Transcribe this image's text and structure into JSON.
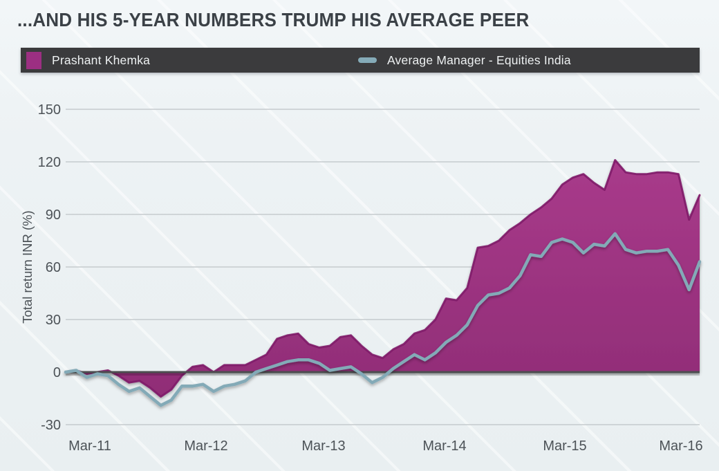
{
  "title": "...AND HIS 5-YEAR NUMBERS TRUMP HIS AVERAGE PEER",
  "legend": {
    "series1": "Prashant Khemka",
    "series2": "Average Manager - Equities India"
  },
  "colors": {
    "khemka_fill_top": "#a93b8b",
    "khemka_fill_bottom": "#8d2b74",
    "khemka_line": "#7e1a68",
    "average_line": "#83aab7",
    "legend_bar": "#3b3b3d",
    "background": "#edf2f4",
    "grid": "#c5cbce",
    "zero_line": "#4c4e50",
    "axis_text": "#4c5257",
    "title_text": "#3b4147"
  },
  "chart_data": {
    "type": "area",
    "title": "...AND HIS 5-YEAR NUMBERS TRUMP HIS AVERAGE PEER",
    "xlabel": "",
    "ylabel": "Total return INR (%)",
    "x_tick_labels": [
      "Mar-11",
      "Mar-12",
      "Mar-13",
      "Mar-14",
      "Mar-15",
      "Mar-16"
    ],
    "y_ticks": [
      150,
      120,
      90,
      60,
      30,
      0,
      -30
    ],
    "ylim": [
      -30,
      150
    ],
    "x_frequency": "monthly",
    "x_start": "Mar-11",
    "x_end": "Mar-16",
    "grid": "horizontal-only",
    "legend_position": "top-bar",
    "series": [
      {
        "name": "Prashant Khemka",
        "style": "area",
        "values": [
          0,
          1,
          -1,
          0,
          1,
          -2,
          -6,
          -5,
          -9,
          -14,
          -10,
          -2,
          3,
          4,
          0,
          4,
          4,
          4,
          7,
          10,
          19,
          21,
          22,
          16,
          14,
          15,
          20,
          21,
          15,
          10,
          8,
          13,
          16,
          22,
          24,
          30,
          42,
          41,
          48,
          71,
          72,
          75,
          81,
          85,
          90,
          94,
          99,
          107,
          111,
          113,
          108,
          104,
          121,
          114,
          113,
          113,
          114,
          114,
          113,
          87,
          101
        ]
      },
      {
        "name": "Average Manager - Equities India",
        "style": "line",
        "values": [
          0,
          1,
          -3,
          -1,
          -2,
          -7,
          -11,
          -9,
          -14,
          -19,
          -16,
          -8,
          -8,
          -7,
          -11,
          -8,
          -7,
          -5,
          0,
          2,
          4,
          6,
          7,
          7,
          5,
          1,
          2,
          3,
          -1,
          -6,
          -3,
          2,
          6,
          10,
          7,
          11,
          17,
          21,
          27,
          38,
          44,
          45,
          48,
          55,
          67,
          66,
          74,
          76,
          74,
          68,
          73,
          72,
          79,
          70,
          68,
          69,
          69,
          70,
          61,
          47,
          63
        ]
      }
    ]
  }
}
